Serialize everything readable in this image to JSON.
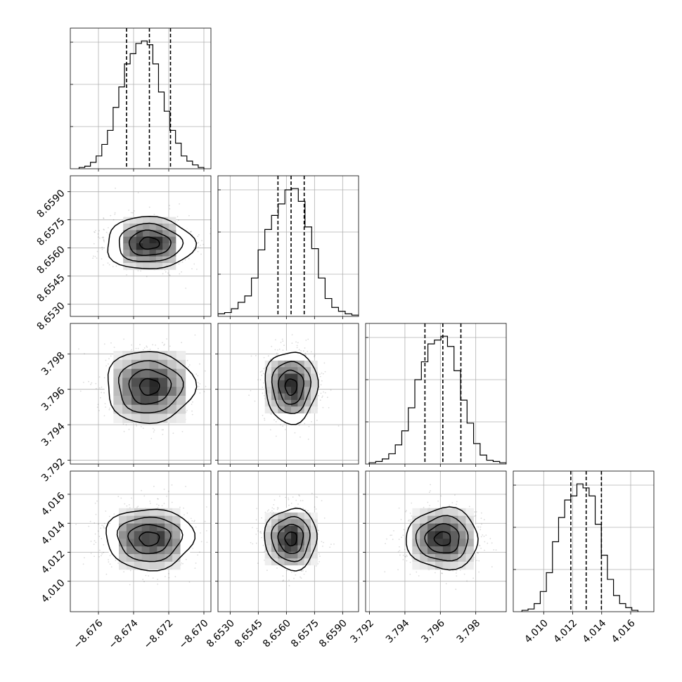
{
  "chart_data": {
    "type": "corner",
    "parameters": [
      {
        "range": [
          -8.6776,
          -8.6696
        ],
        "ticks": [
          -8.676,
          -8.674,
          -8.672,
          -8.67
        ],
        "tick_labels": [
          "−8.676",
          "−8.674",
          "−8.672",
          "−8.670"
        ],
        "quantiles": [
          -8.6744,
          -8.6731,
          -8.6719
        ],
        "histogram": [
          0.01,
          0.02,
          0.05,
          0.1,
          0.19,
          0.3,
          0.48,
          0.64,
          0.82,
          0.9,
          0.98,
          1.0,
          0.97,
          0.82,
          0.6,
          0.45,
          0.3,
          0.2,
          0.1,
          0.06,
          0.03,
          0.01
        ],
        "hist_x_range": [
          -8.6771,
          -8.67
        ]
      },
      {
        "range": [
          8.65235,
          8.65985
        ],
        "ticks": [
          8.653,
          8.6545,
          8.656,
          8.6575,
          8.659
        ],
        "tick_labels": [
          "8.6530",
          "8.6545",
          "8.6560",
          "8.6575",
          "8.6590"
        ],
        "quantiles": [
          8.65555,
          8.65625,
          8.65695
        ],
        "histogram": [
          0.02,
          0.03,
          0.06,
          0.11,
          0.16,
          0.3,
          0.52,
          0.68,
          0.79,
          0.88,
          0.99,
          1.0,
          0.9,
          0.7,
          0.53,
          0.3,
          0.14,
          0.07,
          0.04,
          0.02,
          0.01
        ],
        "hist_x_range": [
          8.65235,
          8.65985
        ]
      },
      {
        "range": [
          3.79178,
          3.79972
        ],
        "ticks": [
          3.792,
          3.794,
          3.796,
          3.798
        ],
        "tick_labels": [
          "3.792",
          "3.794",
          "3.796",
          "3.798"
        ],
        "quantiles": [
          3.79513,
          3.79614,
          3.79716
        ],
        "histogram": [
          0.01,
          0.02,
          0.04,
          0.08,
          0.15,
          0.26,
          0.44,
          0.66,
          0.8,
          0.94,
          0.97,
          1.0,
          0.92,
          0.73,
          0.5,
          0.32,
          0.16,
          0.07,
          0.03,
          0.02,
          0.01
        ],
        "hist_x_range": [
          3.79198,
          3.79972
        ]
      },
      {
        "range": [
          4.0079,
          4.0176
        ],
        "ticks": [
          4.01,
          4.012,
          4.014,
          4.016
        ],
        "tick_labels": [
          "4.010",
          "4.012",
          "4.014",
          "4.016"
        ],
        "quantiles": [
          4.01187,
          4.01293,
          4.01398
        ],
        "histogram": [
          0.01,
          0.02,
          0.06,
          0.15,
          0.29,
          0.52,
          0.7,
          0.83,
          0.86,
          0.95,
          0.92,
          0.86,
          0.65,
          0.42,
          0.24,
          0.12,
          0.06,
          0.03,
          0.01
        ],
        "hist_x_range": [
          4.0085,
          4.0165
        ]
      }
    ],
    "grid": true,
    "histogram_style": "step",
    "quantile_style": "dashed",
    "density_style": "grayscale 2D histogram with black contours and light gray scatter points",
    "colors": {
      "line": "#000000",
      "grid": "#b0b0b0",
      "scatter": "#a0a0a0",
      "density_dark": "#202020"
    }
  }
}
